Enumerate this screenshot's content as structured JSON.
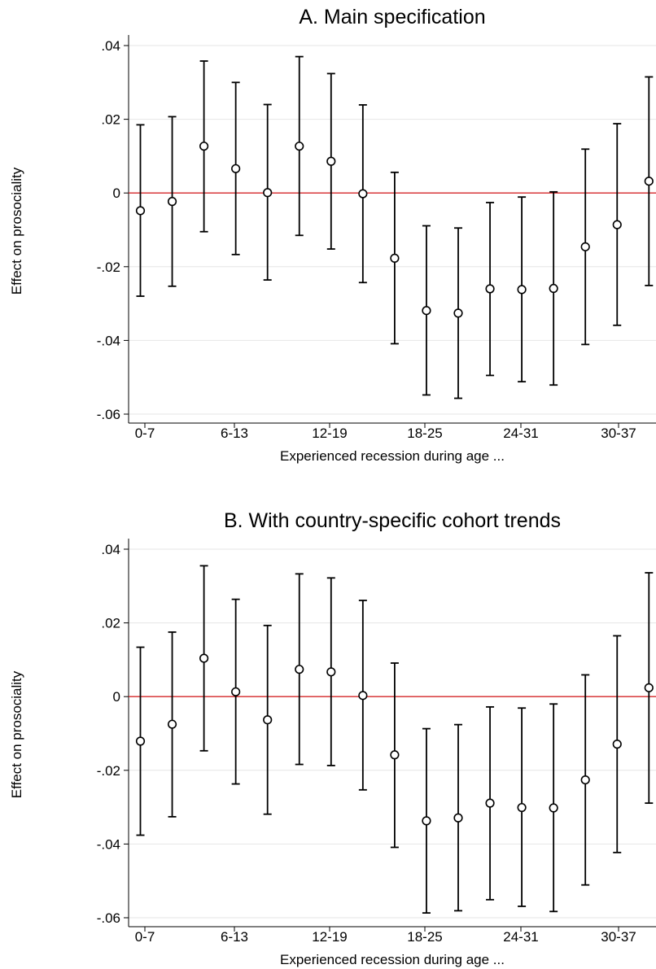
{
  "chart_data": [
    {
      "type": "scatter",
      "title": "A. Main specification",
      "xlabel": "Experienced recession during age ...",
      "ylabel": "Effect on prosociality",
      "ylim": [
        -0.063,
        0.042
      ],
      "yticks": [
        0.04,
        0.02,
        0,
        -0.02,
        -0.04,
        -0.06
      ],
      "ytick_labels": [
        ".04",
        ".02",
        "0",
        "-.02",
        "-.04",
        "-.06"
      ],
      "xtick_labels": [
        "0-7",
        "6-13",
        "12-19",
        "18-25",
        "24-31",
        "30-37"
      ],
      "grid": true,
      "reference_line": {
        "y": 0,
        "color": "#d62728"
      },
      "points": [
        {
          "estimate": -0.0048,
          "ci_low": -0.028,
          "ci_high": 0.0185
        },
        {
          "estimate": -0.0023,
          "ci_low": -0.0253,
          "ci_high": 0.0207
        },
        {
          "estimate": 0.0127,
          "ci_low": -0.0105,
          "ci_high": 0.0358
        },
        {
          "estimate": 0.0066,
          "ci_low": -0.0167,
          "ci_high": 0.03
        },
        {
          "estimate": 0.0001,
          "ci_low": -0.0236,
          "ci_high": 0.024
        },
        {
          "estimate": 0.0127,
          "ci_low": -0.0115,
          "ci_high": 0.037
        },
        {
          "estimate": 0.0086,
          "ci_low": -0.0152,
          "ci_high": 0.0324
        },
        {
          "estimate": -0.0002,
          "ci_low": -0.0243,
          "ci_high": 0.0239
        },
        {
          "estimate": -0.0177,
          "ci_low": -0.0409,
          "ci_high": 0.0056
        },
        {
          "estimate": -0.0319,
          "ci_low": -0.0548,
          "ci_high": -0.0089
        },
        {
          "estimate": -0.0326,
          "ci_low": -0.0557,
          "ci_high": -0.0095
        },
        {
          "estimate": -0.026,
          "ci_low": -0.0495,
          "ci_high": -0.0026
        },
        {
          "estimate": -0.0262,
          "ci_low": -0.0512,
          "ci_high": -0.0011
        },
        {
          "estimate": -0.0259,
          "ci_low": -0.0521,
          "ci_high": 0.0003
        },
        {
          "estimate": -0.0146,
          "ci_low": -0.0411,
          "ci_high": 0.0119
        },
        {
          "estimate": -0.0086,
          "ci_low": -0.0359,
          "ci_high": 0.0188
        },
        {
          "estimate": 0.0032,
          "ci_low": -0.0251,
          "ci_high": 0.0315
        }
      ]
    },
    {
      "type": "scatter",
      "title": "B. With country-specific cohort trends",
      "xlabel": "Experienced recession during age ...",
      "ylabel": "Effect on prosociality",
      "ylim": [
        -0.063,
        0.042
      ],
      "yticks": [
        0.04,
        0.02,
        0,
        -0.02,
        -0.04,
        -0.06
      ],
      "ytick_labels": [
        ".04",
        ".02",
        "0",
        "-.02",
        "-.04",
        "-.06"
      ],
      "xtick_labels": [
        "0-7",
        "6-13",
        "12-19",
        "18-25",
        "24-31",
        "30-37"
      ],
      "grid": true,
      "reference_line": {
        "y": 0,
        "color": "#d62728"
      },
      "points": [
        {
          "estimate": -0.0121,
          "ci_low": -0.0376,
          "ci_high": 0.0134
        },
        {
          "estimate": -0.0075,
          "ci_low": -0.0326,
          "ci_high": 0.0175
        },
        {
          "estimate": 0.0104,
          "ci_low": -0.0147,
          "ci_high": 0.0355
        },
        {
          "estimate": 0.0013,
          "ci_low": -0.0237,
          "ci_high": 0.0264
        },
        {
          "estimate": -0.0063,
          "ci_low": -0.0319,
          "ci_high": 0.0193
        },
        {
          "estimate": 0.0074,
          "ci_low": -0.0184,
          "ci_high": 0.0333
        },
        {
          "estimate": 0.0067,
          "ci_low": -0.0187,
          "ci_high": 0.0322
        },
        {
          "estimate": 0.0003,
          "ci_low": -0.0253,
          "ci_high": 0.0261
        },
        {
          "estimate": -0.0158,
          "ci_low": -0.0409,
          "ci_high": 0.0091
        },
        {
          "estimate": -0.0337,
          "ci_low": -0.0587,
          "ci_high": -0.0087
        },
        {
          "estimate": -0.0329,
          "ci_low": -0.0581,
          "ci_high": -0.0076
        },
        {
          "estimate": -0.0289,
          "ci_low": -0.0551,
          "ci_high": -0.0028
        },
        {
          "estimate": -0.0301,
          "ci_low": -0.0569,
          "ci_high": -0.0031
        },
        {
          "estimate": -0.0302,
          "ci_low": -0.0583,
          "ci_high": -0.002
        },
        {
          "estimate": -0.0226,
          "ci_low": -0.0511,
          "ci_high": 0.0059
        },
        {
          "estimate": -0.0129,
          "ci_low": -0.0423,
          "ci_high": 0.0165
        },
        {
          "estimate": 0.0024,
          "ci_low": -0.0289,
          "ci_high": 0.0336
        }
      ]
    }
  ]
}
